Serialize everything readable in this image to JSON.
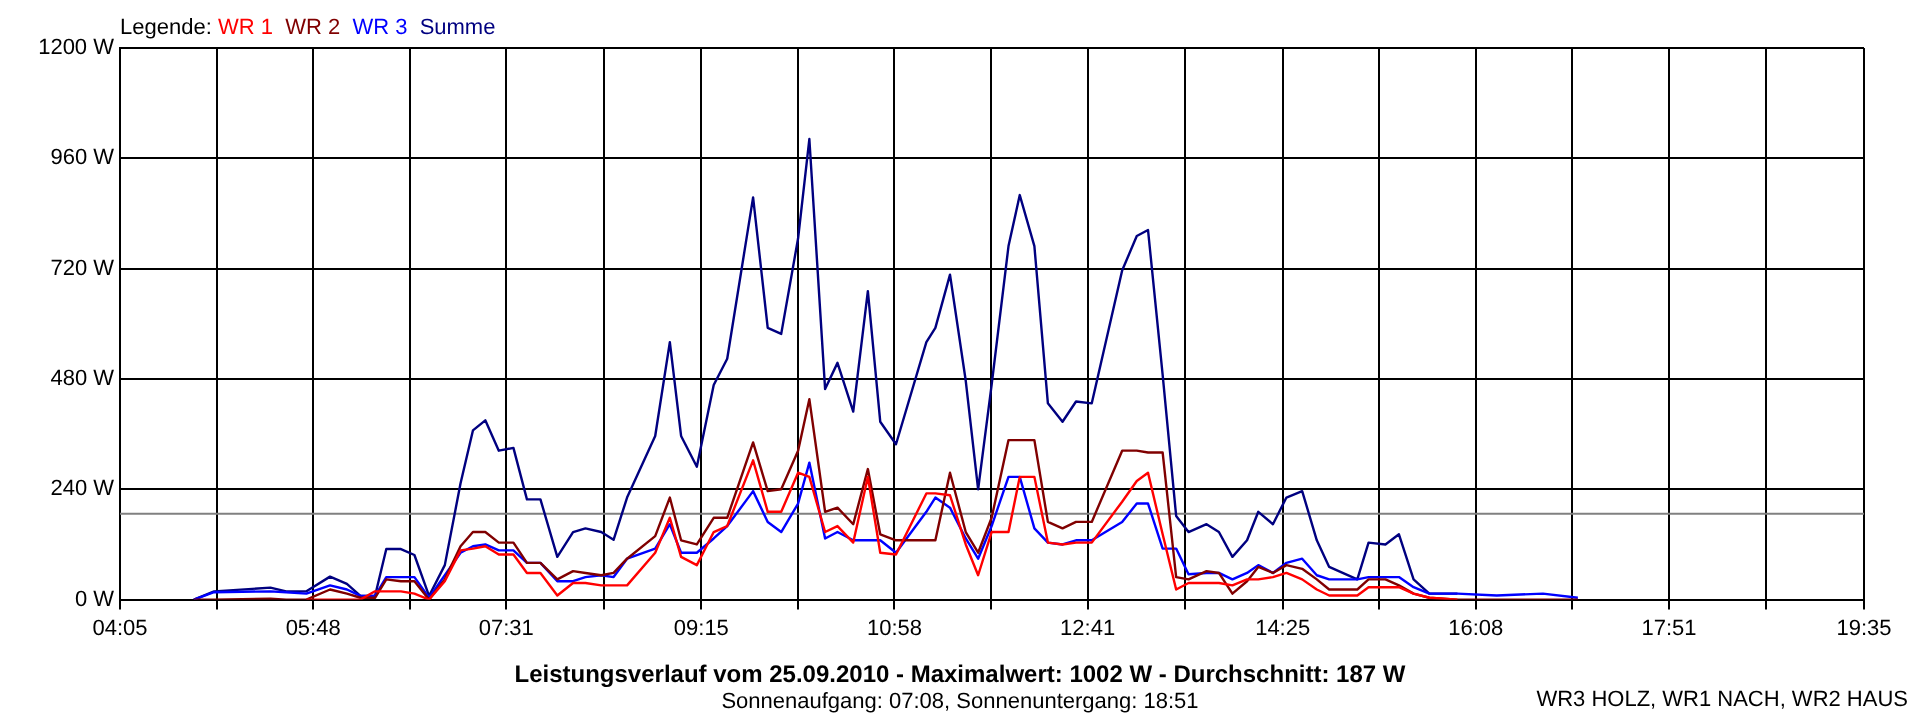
{
  "chart_data": {
    "type": "line",
    "title": "Leistungsverlauf vom 25.09.2010 - Maximalwert: 1002 W - Durchschnitt: 187 W",
    "subtitle": "Sonnenaufgang: 07:08, Sonnenuntergang: 18:51",
    "legend_title": "Legende:",
    "legend": "top left",
    "grid": true,
    "marker": "none",
    "line_style": "solid",
    "annotations": [
      "WR3 HOLZ, WR1 NACH, WR2 HAUS"
    ],
    "x": [
      4.74,
      4.92,
      5.42,
      5.56,
      5.74,
      5.95,
      6.1,
      6.22,
      6.35,
      6.45,
      6.58,
      6.7,
      6.83,
      6.97,
      7.11,
      7.22,
      7.33,
      7.45,
      7.58,
      7.7,
      7.82,
      7.97,
      8.11,
      8.22,
      8.36,
      8.47,
      8.59,
      8.84,
      8.97,
      9.07,
      9.21,
      9.36,
      9.48,
      9.71,
      9.84,
      9.96,
      10.11,
      10.21,
      10.35,
      10.46,
      10.6,
      10.73,
      10.84,
      10.98,
      11.25,
      11.33,
      11.46,
      11.6,
      11.71,
      11.83,
      11.98,
      12.08,
      12.21,
      12.33,
      12.46,
      12.58,
      12.72,
      12.99,
      13.12,
      13.22,
      13.35,
      13.47,
      13.58,
      13.74,
      13.85,
      13.97,
      14.1,
      14.2,
      14.33,
      14.45,
      14.59,
      14.72,
      14.83,
      15.08,
      15.18,
      15.33,
      15.45,
      15.58,
      15.72,
      15.97,
      16.32,
      16.73,
      17.04
    ],
    "series": [
      {
        "name": "WR 1",
        "color": "#ff0000",
        "values": [
          null,
          null,
          null,
          null,
          0,
          0,
          0,
          0,
          18,
          18,
          18,
          13,
          0,
          40,
          107,
          111,
          116,
          98,
          98,
          58,
          58,
          9,
          36,
          36,
          31,
          31,
          31,
          102,
          178,
          93,
          75,
          147,
          160,
          303,
          191,
          191,
          276,
          267,
          147,
          160,
          124,
          267,
          102,
          98,
          231,
          231,
          227,
          120,
          53,
          147,
          147,
          267,
          267,
          124,
          120,
          124,
          124,
          213,
          258,
          276,
          142,
          22,
          36,
          36,
          36,
          31,
          44,
          44,
          49,
          58,
          44,
          22,
          9,
          9,
          27,
          27,
          27,
          13,
          4,
          0,
          null,
          null,
          null
        ]
      },
      {
        "name": "WR 2",
        "color": "#800000",
        "values": [
          0,
          0,
          2,
          0,
          0,
          22,
          13,
          4,
          4,
          44,
          40,
          40,
          0,
          44,
          116,
          147,
          147,
          124,
          124,
          80,
          80,
          44,
          62,
          58,
          53,
          58,
          89,
          138,
          222,
          129,
          120,
          178,
          178,
          342,
          236,
          240,
          324,
          436,
          191,
          200,
          164,
          284,
          142,
          129,
          129,
          129,
          276,
          147,
          102,
          178,
          347,
          347,
          347,
          169,
          155,
          169,
          169,
          324,
          324,
          320,
          320,
          49,
          44,
          62,
          58,
          13,
          40,
          71,
          58,
          75,
          67,
          44,
          22,
          22,
          44,
          44,
          31,
          13,
          4,
          0,
          0,
          0,
          0
        ]
      },
      {
        "name": "WR 3",
        "color": "#0000ff",
        "values": [
          0,
          16,
          18,
          16,
          13,
          31,
          22,
          8,
          8,
          49,
          49,
          49,
          4,
          53,
          102,
          116,
          120,
          107,
          107,
          80,
          80,
          40,
          40,
          49,
          53,
          49,
          89,
          111,
          164,
          102,
          102,
          133,
          160,
          236,
          169,
          147,
          209,
          298,
          133,
          147,
          129,
          129,
          129,
          102,
          191,
          222,
          200,
          133,
          89,
          160,
          267,
          267,
          155,
          124,
          120,
          129,
          129,
          169,
          209,
          209,
          111,
          111,
          55,
          58,
          58,
          44,
          58,
          75,
          58,
          80,
          89,
          53,
          44,
          44,
          49,
          49,
          49,
          27,
          13,
          13,
          9,
          13,
          4
        ]
      },
      {
        "name": "Summe",
        "color": "#000080",
        "values": [
          0,
          18,
          26,
          18,
          18,
          50,
          34,
          8,
          8,
          110,
          110,
          97,
          8,
          75,
          253,
          368,
          390,
          324,
          330,
          218,
          218,
          93,
          147,
          155,
          147,
          130,
          222,
          356,
          560,
          356,
          289,
          467,
          524,
          875,
          591,
          578,
          786,
          1002,
          458,
          515,
          409,
          671,
          387,
          338,
          560,
          591,
          707,
          476,
          240,
          467,
          769,
          880,
          769,
          427,
          387,
          431,
          427,
          716,
          791,
          804,
          489,
          182,
          147,
          164,
          147,
          93,
          129,
          191,
          164,
          222,
          236,
          129,
          71,
          44,
          124,
          120,
          142,
          44,
          13,
          13,
          null,
          null,
          null
        ]
      }
    ],
    "ref_lines": [
      {
        "axis": "y",
        "value": 187,
        "color": "#808080"
      }
    ],
    "xlim": [
      4.0833,
      19.5833
    ],
    "xticks": [
      {
        "value": 4.0833,
        "label": "04:05"
      },
      {
        "value": 4.9417,
        "label": null
      },
      {
        "value": 5.8,
        "label": "05:48"
      },
      {
        "value": 6.6583,
        "label": null
      },
      {
        "value": 7.5167,
        "label": "07:31"
      },
      {
        "value": 8.3833,
        "label": null
      },
      {
        "value": 9.25,
        "label": "09:15"
      },
      {
        "value": 10.1083,
        "label": null
      },
      {
        "value": 10.9667,
        "label": "10:58"
      },
      {
        "value": 11.825,
        "label": null
      },
      {
        "value": 12.6833,
        "label": "12:41"
      },
      {
        "value": 13.55,
        "label": null
      },
      {
        "value": 14.4167,
        "label": "14:25"
      },
      {
        "value": 15.275,
        "label": null
      },
      {
        "value": 16.1333,
        "label": "16:08"
      },
      {
        "value": 16.9917,
        "label": null
      },
      {
        "value": 17.85,
        "label": "17:51"
      },
      {
        "value": 18.7167,
        "label": null
      },
      {
        "value": 19.5833,
        "label": "19:35"
      }
    ],
    "ylim": [
      0,
      1200
    ],
    "yticks": [
      {
        "value": 0,
        "label": "0 W"
      },
      {
        "value": 240,
        "label": "240 W"
      },
      {
        "value": 480,
        "label": "480 W"
      },
      {
        "value": 720,
        "label": "720 W"
      },
      {
        "value": 960,
        "label": "960 W"
      },
      {
        "value": 1200,
        "label": "1200 W"
      }
    ]
  }
}
